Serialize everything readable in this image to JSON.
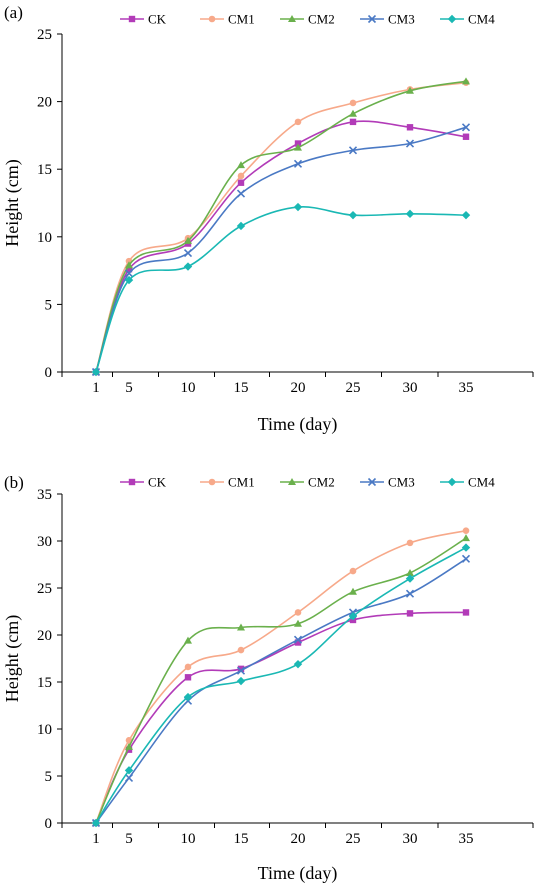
{
  "chart_data": [
    {
      "type": "line",
      "panel_label": "(a)",
      "xlabel": "Time (day)",
      "ylabel": "Height (cm)",
      "categories": [
        "1",
        "5",
        "10",
        "15",
        "20",
        "25",
        "30",
        "35"
      ],
      "ylim": [
        0,
        25
      ],
      "yticks": [
        "0",
        "5",
        "10",
        "15",
        "20",
        "25"
      ],
      "grid": false,
      "legend_position": "top",
      "series": [
        {
          "name": "CK",
          "color": "#b23bb8",
          "marker": "square",
          "values": [
            0,
            7.6,
            9.5,
            14.0,
            16.9,
            18.5,
            18.1,
            17.4
          ]
        },
        {
          "name": "CM1",
          "color": "#f7a98a",
          "marker": "circle",
          "values": [
            0,
            8.2,
            9.9,
            14.5,
            18.5,
            19.9,
            20.9,
            21.4
          ]
        },
        {
          "name": "CM2",
          "color": "#6ab04c",
          "marker": "triangle",
          "values": [
            0,
            7.9,
            9.7,
            15.3,
            16.6,
            19.1,
            20.8,
            21.5
          ]
        },
        {
          "name": "CM3",
          "color": "#4a79c4",
          "marker": "x",
          "values": [
            0,
            7.3,
            8.8,
            13.2,
            15.4,
            16.4,
            16.9,
            18.1
          ]
        },
        {
          "name": "CM4",
          "color": "#1ab8b4",
          "marker": "diamond",
          "values": [
            0,
            6.8,
            7.8,
            10.8,
            12.2,
            11.6,
            11.7,
            11.6
          ]
        }
      ]
    },
    {
      "type": "line",
      "panel_label": "(b)",
      "xlabel": "Time (day)",
      "ylabel": "Height (cm)",
      "categories": [
        "1",
        "5",
        "10",
        "15",
        "20",
        "25",
        "30",
        "35"
      ],
      "ylim": [
        0,
        35
      ],
      "yticks": [
        "0",
        "5",
        "10",
        "15",
        "20",
        "25",
        "30",
        "35"
      ],
      "grid": false,
      "legend_position": "top",
      "series": [
        {
          "name": "CK",
          "color": "#b23bb8",
          "marker": "square",
          "values": [
            0,
            7.8,
            15.5,
            16.4,
            19.2,
            21.6,
            22.3,
            22.4
          ]
        },
        {
          "name": "CM1",
          "color": "#f7a98a",
          "marker": "circle",
          "values": [
            0,
            8.8,
            16.6,
            18.4,
            22.4,
            26.8,
            29.8,
            31.1
          ]
        },
        {
          "name": "CM2",
          "color": "#6ab04c",
          "marker": "triangle",
          "values": [
            0,
            8.1,
            19.4,
            20.8,
            21.2,
            24.6,
            26.6,
            30.3
          ]
        },
        {
          "name": "CM3",
          "color": "#4a79c4",
          "marker": "x",
          "values": [
            0,
            4.8,
            13.0,
            16.2,
            19.5,
            22.4,
            24.4,
            28.1
          ]
        },
        {
          "name": "CM4",
          "color": "#1ab8b4",
          "marker": "diamond",
          "values": [
            0,
            5.6,
            13.4,
            15.1,
            16.9,
            22.0,
            26.0,
            29.3
          ]
        }
      ]
    }
  ]
}
